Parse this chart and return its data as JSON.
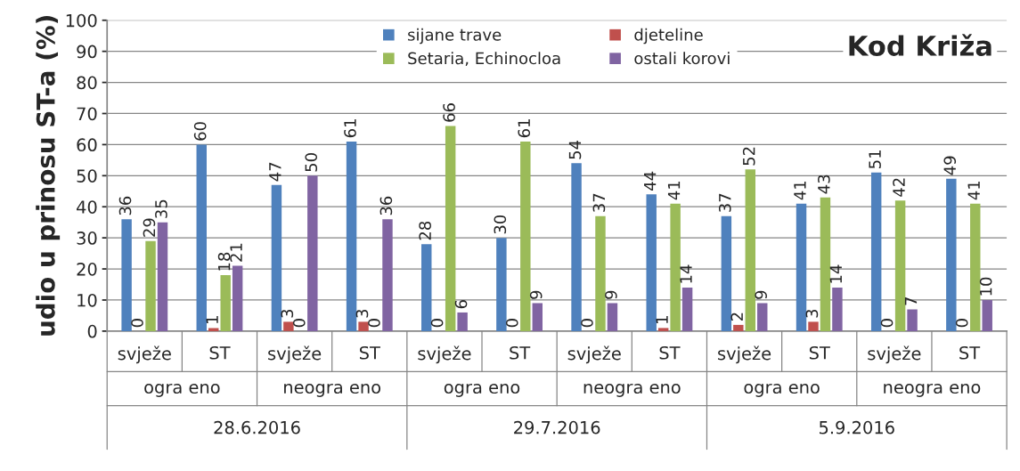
{
  "chart_data": {
    "type": "bar",
    "title": "Kod Križa",
    "ylabel": "udio u prinosu ST-a (%)",
    "categories": [
      "svježe",
      "ST",
      "svježe",
      "ST",
      "svježe",
      "ST",
      "svježe",
      "ST",
      "svježe",
      "ST",
      "svježe",
      "ST"
    ],
    "series": [
      {
        "name": "sijane trave",
        "color": "#4f81bd",
        "values": [
          36,
          60,
          47,
          61,
          28,
          30,
          54,
          44,
          37,
          41,
          51,
          49
        ]
      },
      {
        "name": "djeteline",
        "color": "#c0504d",
        "values": [
          0,
          1,
          3,
          3,
          0,
          0,
          0,
          1,
          2,
          3,
          0,
          0
        ]
      },
      {
        "name": "Setaria, Echinocloa",
        "color": "#9bbb59",
        "values": [
          29,
          18,
          0,
          0,
          66,
          61,
          37,
          41,
          52,
          43,
          42,
          41
        ]
      },
      {
        "name": "ostali korovi",
        "color": "#8064a2",
        "values": [
          35,
          21,
          50,
          36,
          6,
          9,
          9,
          14,
          9,
          14,
          7,
          10
        ]
      }
    ],
    "annotations": [
      "ogra eno",
      "neogra eno",
      "ogra eno",
      "neogra eno",
      "ogra eno",
      "neogra eno",
      "28.6.2016",
      "29.7.2016",
      "5.9.2016"
    ],
    "ylim": [
      0,
      100
    ],
    "yticks": [
      0,
      10,
      20,
      30,
      40,
      50,
      60,
      70,
      80,
      90,
      100
    ],
    "grid": "y",
    "legend": "top",
    "data_labels": true
  }
}
